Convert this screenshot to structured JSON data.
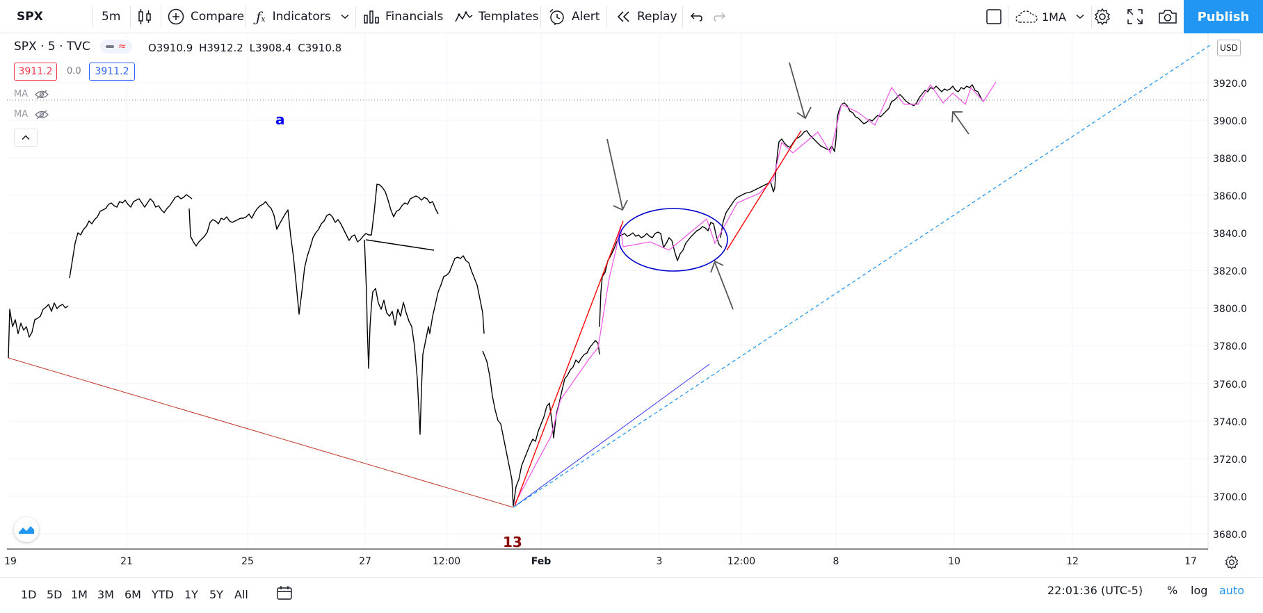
{
  "toolbar": {
    "symbol": "SPX",
    "interval": "5m",
    "compare_label": "Compare",
    "indicators_label": "Indicators",
    "financials_label": "Financials",
    "templates_label": "Templates",
    "alert_label": "Alert",
    "replay_label": "Replay",
    "layout_label": "1MA",
    "publish_label": "Publish"
  },
  "legend": {
    "title": "SPX · 5 · TVC",
    "open": "O3910.9",
    "high": "H3912.2",
    "low": "L3908.4",
    "close": "C3910.8",
    "bid": "3911.2",
    "spread": "0.0",
    "ask": "3911.2",
    "ma1": "MA",
    "ma2": "MA"
  },
  "annotations": {
    "letter_a": "a",
    "wave_13": "13"
  },
  "price_axis": {
    "currency": "USD",
    "labels": [
      "3920.0",
      "3900.0",
      "3880.0",
      "3860.0",
      "3840.0",
      "3820.0",
      "3800.0",
      "3780.0",
      "3760.0",
      "3740.0",
      "3720.0",
      "3700.0",
      "3680.0"
    ]
  },
  "time_axis": {
    "labels": [
      "19",
      "21",
      "25",
      "27",
      "12:00",
      "Feb",
      "3",
      "12:00",
      "8",
      "10",
      "12",
      "17"
    ]
  },
  "bottom": {
    "ranges": [
      "1D",
      "5D",
      "1M",
      "3M",
      "6M",
      "YTD",
      "1Y",
      "5Y",
      "All"
    ],
    "clock": "22:01:36 (UTC-5)",
    "percent": "%",
    "log": "log",
    "auto": "auto"
  },
  "colors": {
    "accent": "#2196f3",
    "bid_red": "#f23645",
    "ask_blue": "#2962ff",
    "wave_pink": "#f05ee8",
    "trend_red": "#ff0000",
    "annot_blue": "#0000ff",
    "dark_red": "#8b0000"
  }
}
